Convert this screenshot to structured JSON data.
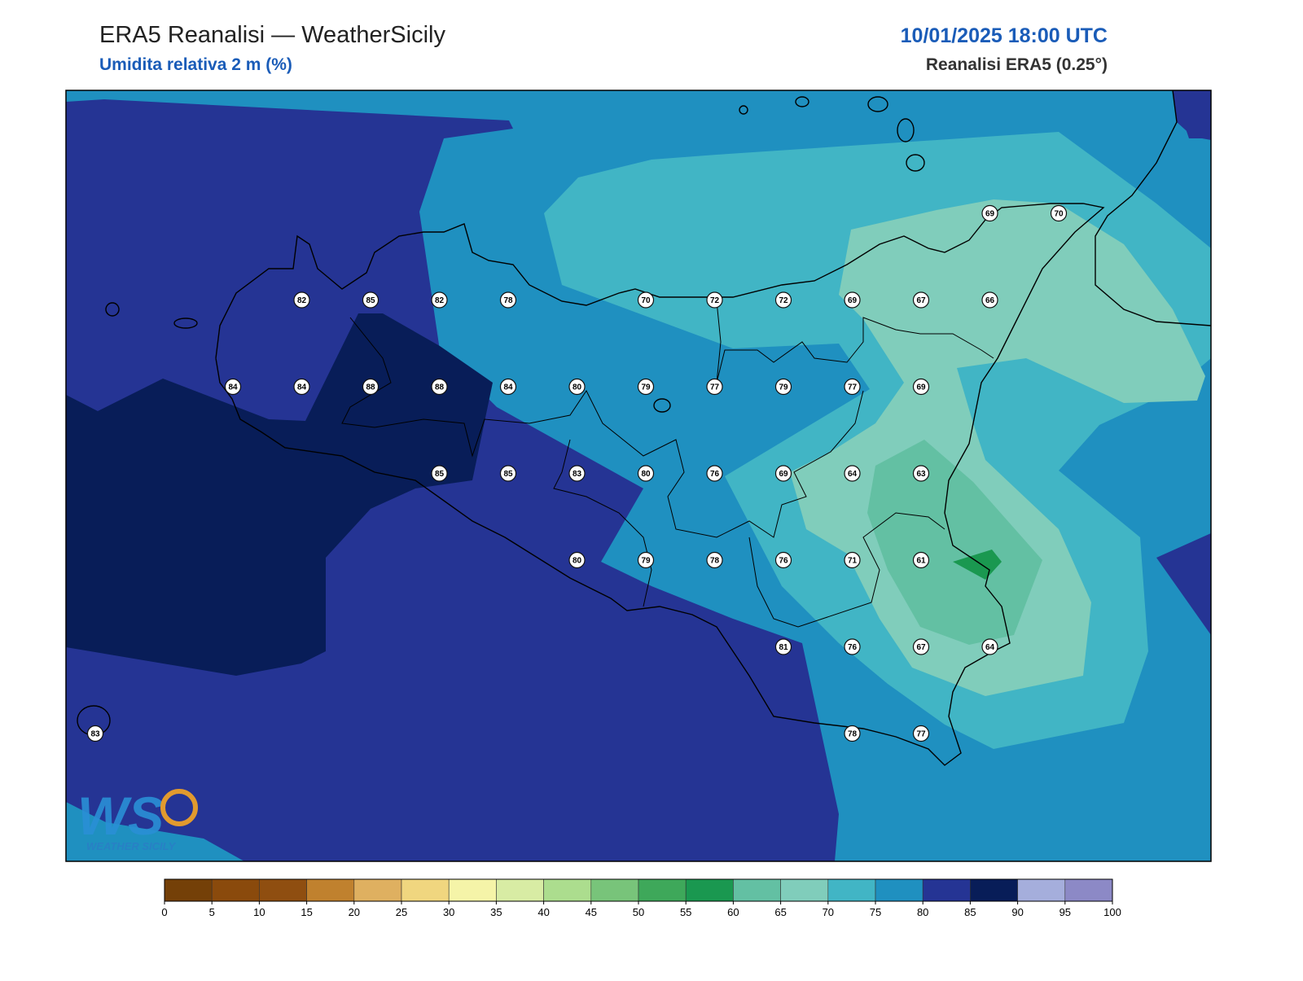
{
  "header": {
    "title": "ERA5 Reanalisi — WeatherSicily",
    "subtitle": "Umidita relativa 2 m (%)",
    "datetime": "10/01/2025 18:00 UTC",
    "source": "Reanalisi ERA5 (0.25°)"
  },
  "stations": {
    "rows": [
      [
        null,
        null,
        null,
        null,
        null,
        null,
        null,
        null,
        null,
        null,
        null,
        null,
        null,
        69,
        70
      ],
      [
        null,
        null,
        null,
        82,
        85,
        82,
        78,
        null,
        70,
        72,
        72,
        69,
        67,
        66,
        null
      ],
      [
        null,
        null,
        84,
        84,
        88,
        88,
        84,
        80,
        79,
        77,
        79,
        77,
        69,
        null,
        null
      ],
      [
        null,
        null,
        null,
        null,
        null,
        85,
        85,
        83,
        80,
        76,
        69,
        64,
        63,
        null,
        null
      ],
      [
        null,
        null,
        null,
        null,
        null,
        null,
        null,
        80,
        79,
        78,
        76,
        71,
        61,
        null,
        null
      ],
      [
        null,
        null,
        null,
        null,
        null,
        null,
        null,
        null,
        null,
        null,
        81,
        76,
        67,
        64,
        null
      ],
      [
        83,
        null,
        null,
        null,
        null,
        null,
        null,
        null,
        null,
        null,
        null,
        78,
        77,
        null,
        null
      ]
    ]
  },
  "colorbar": {
    "ticks": [
      0,
      5,
      10,
      15,
      20,
      25,
      30,
      35,
      40,
      45,
      50,
      55,
      60,
      65,
      70,
      75,
      80,
      85,
      90,
      95,
      100
    ],
    "colors": [
      "#744008",
      "#8a4a0c",
      "#8f4e10",
      "#c0812e",
      "#dfb060",
      "#f0d67f",
      "#f5f4a8",
      "#d8eca4",
      "#acdd8e",
      "#78c47a",
      "#3ea85a",
      "#1a9850",
      "#63c0a3",
      "#80cdbb",
      "#41b5c5",
      "#1f90c0",
      "#253494",
      "#081d58",
      "#a5aedc",
      "#8c89c6"
    ]
  },
  "logo": {
    "letters": "WS",
    "name": "WEATHER SICILY"
  }
}
